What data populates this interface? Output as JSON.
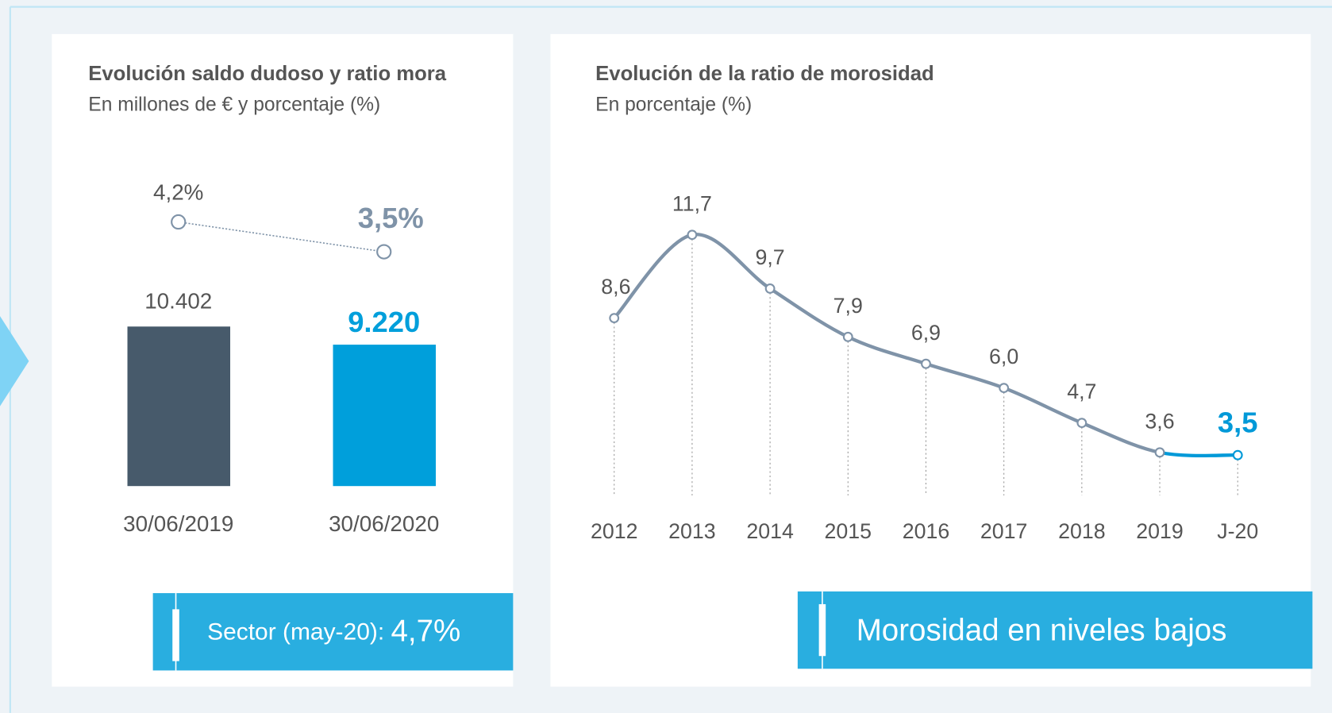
{
  "chart_data": [
    {
      "type": "bar",
      "title": "Evolución saldo dudoso y ratio mora",
      "subtitle": "En millones de € y porcentaje (%)",
      "categories": [
        "30/06/2019",
        "30/06/2020"
      ],
      "series": [
        {
          "values": [
            10402,
            9220
          ],
          "value_labels": [
            "10.402",
            "9.220"
          ],
          "colors": [
            "#475a6b",
            "#009fdb"
          ]
        },
        {
          "values": [
            4.2,
            3.5
          ],
          "value_labels": [
            "4,2%",
            "3,5%"
          ],
          "axis": "y2",
          "color": "#7f93a8"
        }
      ],
      "ylim": [
        0,
        20000
      ],
      "y2lim": [
        -2,
        5.2
      ],
      "annotation_label": "Sector (may-20):",
      "annotation_value": "4,7%"
    },
    {
      "type": "line",
      "title": "Evolución de la ratio de morosidad",
      "subtitle": "En porcentaje (%)",
      "categories": [
        "2012",
        "2013",
        "2014",
        "2015",
        "2016",
        "2017",
        "2018",
        "2019",
        "J-20"
      ],
      "values": [
        8.6,
        11.7,
        9.7,
        7.9,
        6.9,
        6.0,
        4.7,
        3.6,
        3.5
      ],
      "value_labels": [
        "8,6",
        "11,7",
        "9,7",
        "7,9",
        "6,9",
        "6,0",
        "4,7",
        "3,6",
        "3,5"
      ],
      "color": "#7f93a8",
      "highlight_color": "#0099d8",
      "ylim": [
        2,
        12.5
      ],
      "annotation": "Morosidad en niveles bajos"
    }
  ]
}
